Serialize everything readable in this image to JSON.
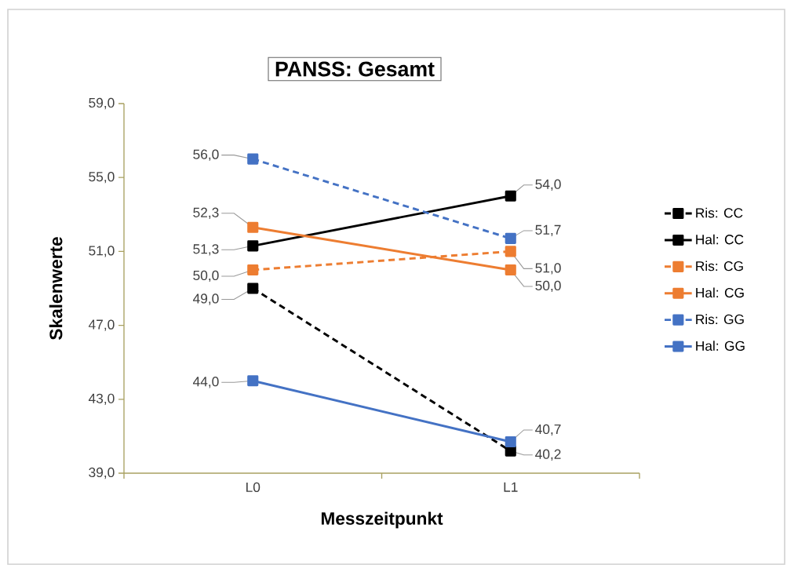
{
  "chart_data": {
    "type": "line",
    "title": "PANSS: Gesamt",
    "xlabel": "Messzeitpunkt",
    "ylabel": "Skalenwerte",
    "categories": [
      "L0",
      "L1"
    ],
    "ylim": [
      39,
      59
    ],
    "yticks": [
      {
        "value": 39,
        "label": "39,0"
      },
      {
        "value": 43,
        "label": "43,0"
      },
      {
        "value": 47,
        "label": "47,0"
      },
      {
        "value": 51,
        "label": "51,0"
      },
      {
        "value": 55,
        "label": "55,0"
      },
      {
        "value": 59,
        "label": "59,0"
      }
    ],
    "marker": "square",
    "legend": "right",
    "grid": false,
    "series": [
      {
        "name": "Ris: CC",
        "color": "#000000",
        "line_style": "dashed",
        "values": [
          49.0,
          40.2
        ],
        "value_labels": [
          "49,0",
          "40,2"
        ]
      },
      {
        "name": "Hal: CC",
        "color": "#000000",
        "line_style": "solid",
        "values": [
          51.3,
          54.0
        ],
        "value_labels": [
          "51,3",
          "54,0"
        ]
      },
      {
        "name": "Ris: CG",
        "color": "#ed7d31",
        "line_style": "dashed",
        "values": [
          50.0,
          51.0
        ],
        "value_labels": [
          "50,0",
          "51,0"
        ]
      },
      {
        "name": "Hal: CG",
        "color": "#ed7d31",
        "line_style": "solid",
        "values": [
          52.3,
          50.0
        ],
        "value_labels": [
          "52,3",
          "50,0"
        ]
      },
      {
        "name": "Ris: GG",
        "color": "#4472c4",
        "line_style": "dashed",
        "values": [
          56.0,
          51.7
        ],
        "value_labels": [
          "56,0",
          "51,7"
        ]
      },
      {
        "name": "Hal: GG",
        "color": "#4472c4",
        "line_style": "solid",
        "values": [
          44.0,
          40.7
        ],
        "value_labels": [
          "44,0",
          "40,7"
        ]
      }
    ]
  }
}
